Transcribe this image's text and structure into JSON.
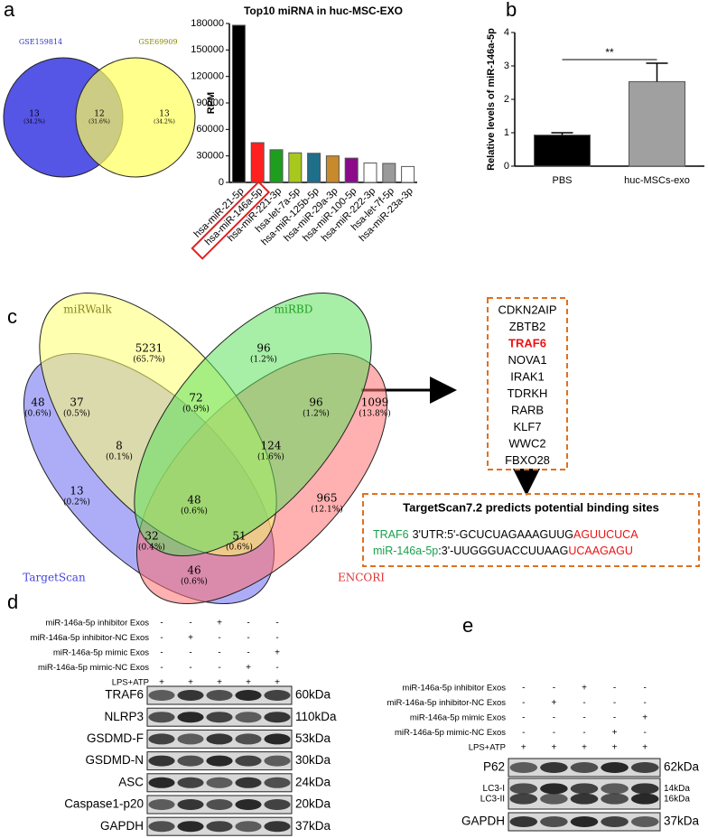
{
  "panel_labels": [
    "a",
    "b",
    "c",
    "d",
    "e"
  ],
  "venn_a": {
    "sets": [
      "GSE159814",
      "GSE69909"
    ],
    "regions": [
      {
        "count": 13,
        "percent": "(34.2%)"
      },
      {
        "count": 12,
        "percent": "(31.6%)"
      },
      {
        "count": 13,
        "percent": "(34.2%)"
      }
    ]
  },
  "chart_data": [
    {
      "type": "bar",
      "title": "Top10 miRNA in huc-MSC-EXO",
      "ylabel": "RPM",
      "categories": [
        "hsa-miR-21-5p",
        "hsa-miR-146a-5p",
        "hsa-miR-221-3p",
        "hsa-let-7a-5p",
        "hsa-miR-125b-5p",
        "hsa-miR-29a-3p",
        "hsa-miR-100-5p",
        "hsa-miR-222-3p",
        "hsa-let-7f-5p",
        "hsa-miR-23a-3p"
      ],
      "values": [
        178000,
        45000,
        37000,
        33500,
        33000,
        30000,
        27500,
        22000,
        21500,
        18000
      ],
      "colors": [
        "#000000",
        "#ff2020",
        "#1e9e1e",
        "#a8c81e",
        "#1f6f8b",
        "#c88a2a",
        "#8a0a8a",
        "#ffffff",
        "#9a9a9a",
        "#ffffff"
      ],
      "ylim": [
        0,
        180000
      ],
      "yticks": [
        0,
        30000,
        60000,
        90000,
        120000,
        150000,
        180000
      ]
    },
    {
      "type": "bar",
      "ylabel": "Relative levels of miR-146a-5p",
      "categories": [
        "PBS",
        "huc-MSCs-exo"
      ],
      "values": [
        0.93,
        2.53
      ],
      "errors": [
        0.07,
        0.55
      ],
      "colors": [
        "#000000",
        "#a0a0a0"
      ],
      "annotations": [
        "**"
      ],
      "ylim": [
        0,
        4
      ],
      "yticks": [
        0,
        1,
        2,
        3,
        4
      ]
    }
  ],
  "venn_c": {
    "sets": [
      "miRWalk",
      "miRBD",
      "TargetScan",
      "ENCORI"
    ],
    "regions": [
      {
        "count": 5231,
        "percent": "(65.7%)"
      },
      {
        "count": 96,
        "percent": "(1.2%)"
      },
      {
        "count": 37,
        "percent": "(0.5%)"
      },
      {
        "count": 72,
        "percent": "(0.9%)"
      },
      {
        "count": 96,
        "percent": "(1.2%)"
      },
      {
        "count": 48,
        "percent": "(0.6%)"
      },
      {
        "count": 1099,
        "percent": "(13.8%)"
      },
      {
        "count": 8,
        "percent": "(0.1%)"
      },
      {
        "count": 124,
        "percent": "(1.6%)"
      },
      {
        "count": 48,
        "percent": "(0.6%)"
      },
      {
        "count": 13,
        "percent": "(0.2%)"
      },
      {
        "count": 965,
        "percent": "(12.1%)"
      },
      {
        "count": 32,
        "percent": "(0.4%)"
      },
      {
        "count": 51,
        "percent": "(0.6%)"
      },
      {
        "count": 46,
        "percent": "(0.6%)"
      }
    ]
  },
  "gene_list": [
    "CDKN2AIP",
    "ZBTB2",
    "TRAF6",
    "NOVA1",
    "IRAK1",
    "TDRKH",
    "RARB",
    "KLF7",
    "WWC2",
    "FBXO28"
  ],
  "binding": {
    "title": "TargetScan7.2 predicts potential binding sites",
    "lines": [
      {
        "name": "TRAF6",
        "sequence": "3'UTR:5'-GCUCUAGAAAGUUG",
        "site": "AGUUCUCA"
      },
      {
        "name": "miR-146a-5p",
        "sequence": ":3'-UUGGGUACCUUAAG",
        "site": "UCAAGAGU"
      }
    ]
  },
  "blot_d": {
    "conditions": [
      {
        "label": "miR-146a-5p inhibitor Exos",
        "signs": [
          "-",
          "-",
          "+",
          "-",
          "-"
        ]
      },
      {
        "label": "miR-146a-5p inhibitor-NC Exos",
        "signs": [
          "-",
          "+",
          "-",
          "-",
          "-"
        ]
      },
      {
        "label": "miR-146a-5p mimic Exos",
        "signs": [
          "-",
          "-",
          "-",
          "-",
          "+"
        ]
      },
      {
        "label": "miR-146a-5p mimic-NC Exos",
        "signs": [
          "-",
          "-",
          "-",
          "+",
          "-"
        ]
      },
      {
        "label": "LPS+ATP",
        "signs": [
          "+",
          "+",
          "+",
          "+",
          "+"
        ]
      }
    ],
    "bands": [
      {
        "label": "TRAF6",
        "size": "60kDa"
      },
      {
        "label": "NLRP3",
        "size": "110kDa"
      },
      {
        "label": "GSDMD-F",
        "size": "53kDa"
      },
      {
        "label": "GSDMD-N",
        "size": "30kDa"
      },
      {
        "label": "ASC",
        "size": "24kDa"
      },
      {
        "label": "Caspase1-p20",
        "size": "20kDa"
      },
      {
        "label": "GAPDH",
        "size": "37kDa"
      }
    ]
  },
  "blot_e": {
    "conditions": [
      {
        "label": "miR-146a-5p inhibitor Exos",
        "signs": [
          "-",
          "-",
          "+",
          "-",
          "-"
        ]
      },
      {
        "label": "miR-146a-5p inhibitor-NC Exos",
        "signs": [
          "-",
          "+",
          "-",
          "-",
          "-"
        ]
      },
      {
        "label": "miR-146a-5p mimic Exos",
        "signs": [
          "-",
          "-",
          "-",
          "-",
          "+"
        ]
      },
      {
        "label": "miR-146a-5p mimic-NC Exos",
        "signs": [
          "-",
          "-",
          "-",
          "+",
          "-"
        ]
      },
      {
        "label": "LPS+ATP",
        "signs": [
          "+",
          "+",
          "+",
          "+",
          "+"
        ]
      }
    ],
    "bands": [
      {
        "label": "P62",
        "size": "62kDa"
      },
      {
        "label": "LC3-I",
        "size": "14kDa"
      },
      {
        "label": "LC3-II",
        "size": "16kDa"
      },
      {
        "label": "GAPDH",
        "size": "37kDa"
      }
    ]
  }
}
